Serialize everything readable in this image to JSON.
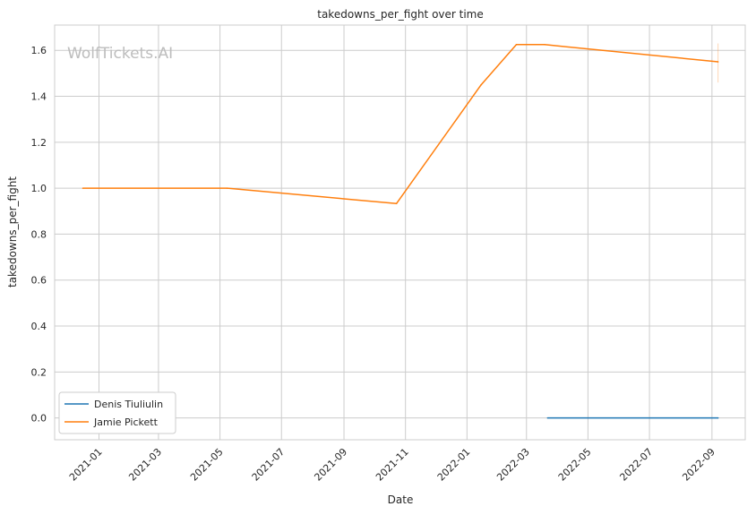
{
  "chart_data": {
    "type": "line",
    "title": "takedowns_per_fight over time",
    "xlabel": "Date",
    "ylabel": "takedowns_per_fight",
    "watermark": "WolfTickets.AI",
    "x_axis_kind": "date",
    "xlim": [
      "2020-11-18",
      "2022-10-04"
    ],
    "ylim": [
      -0.095,
      1.71
    ],
    "x_ticks": [
      "2021-01-01",
      "2021-03-01",
      "2021-05-01",
      "2021-07-01",
      "2021-09-01",
      "2021-11-01",
      "2022-01-01",
      "2022-03-01",
      "2022-05-01",
      "2022-07-01",
      "2022-09-01"
    ],
    "x_tick_labels": [
      "2021-01",
      "2021-03",
      "2021-05",
      "2021-07",
      "2021-09",
      "2021-11",
      "2022-01",
      "2022-03",
      "2022-05",
      "2022-07",
      "2022-09"
    ],
    "y_ticks": [
      0.0,
      0.2,
      0.4,
      0.6,
      0.8,
      1.0,
      1.2,
      1.4,
      1.6
    ],
    "y_tick_labels": [
      "0.0",
      "0.2",
      "0.4",
      "0.6",
      "0.8",
      "1.0",
      "1.2",
      "1.4",
      "1.6"
    ],
    "grid": true,
    "legend_position": "lower-left",
    "series": [
      {
        "name": "Denis Tiuliulin",
        "color": "#1f77b4",
        "points": [
          {
            "x": "2022-03-22",
            "y": 0.0
          },
          {
            "x": "2022-09-07",
            "y": 0.0
          }
        ]
      },
      {
        "name": "Jamie Pickett",
        "color": "#ff7f0e",
        "points": [
          {
            "x": "2020-12-16",
            "y": 1.0
          },
          {
            "x": "2021-05-08",
            "y": 1.0
          },
          {
            "x": "2021-10-23",
            "y": 0.933
          },
          {
            "x": "2022-01-15",
            "y": 1.45
          },
          {
            "x": "2022-02-19",
            "y": 1.625
          },
          {
            "x": "2022-03-19",
            "y": 1.625
          },
          {
            "x": "2022-09-07",
            "y": 1.55
          }
        ],
        "error_band_last": [
          1.46,
          1.63
        ]
      }
    ]
  }
}
